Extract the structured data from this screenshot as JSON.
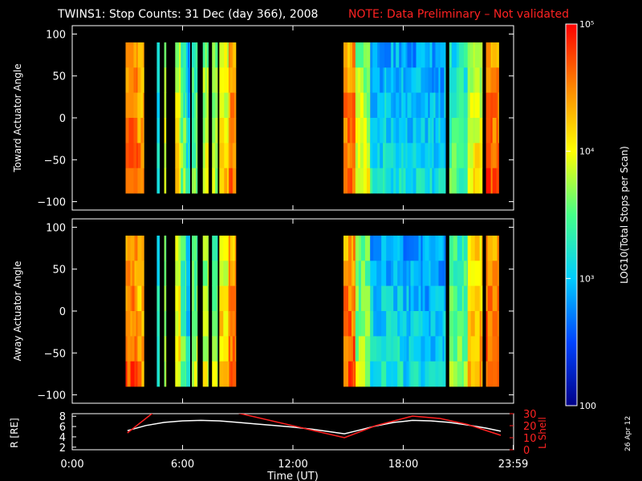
{
  "title": {
    "main": "TWINS1: Stop Counts: 31 Dec (day 366), 2008",
    "note": "NOTE: Data Preliminary – Not validated"
  },
  "stamp": "26 Apr 12",
  "colorbar": {
    "label": "LOG10(Total Stops per Scan)",
    "ticks": [
      "10⁵",
      "10⁴",
      "10³",
      "100"
    ],
    "tick_values": [
      100000,
      10000,
      1000,
      100
    ],
    "colors": [
      "#ff0000",
      "#ff8800",
      "#ffff00",
      "#44ff88",
      "#00ccff",
      "#0044ff",
      "#000088"
    ]
  },
  "chart_data": [
    {
      "type": "heatmap",
      "ylabel": "Toward Actuator Angle",
      "ylim": [
        -110,
        110
      ],
      "yticks": [
        "100",
        "50",
        "0",
        "−50",
        "−100"
      ],
      "ytick_values": [
        100,
        50,
        0,
        -50,
        -100
      ],
      "xlim_hours": [
        0,
        24
      ],
      "segments": [
        {
          "t0": 2.9,
          "t1": 3.55,
          "level": 0.82
        },
        {
          "t0": 3.55,
          "t1": 3.9,
          "level": 0.74
        },
        {
          "t0": 4.6,
          "t1": 4.75,
          "level": 0.35
        },
        {
          "t0": 5.0,
          "t1": 5.1,
          "level": 0.55
        },
        {
          "t0": 5.6,
          "t1": 5.9,
          "level": 0.6
        },
        {
          "t0": 5.9,
          "t1": 6.2,
          "level": 0.45
        },
        {
          "t0": 6.2,
          "t1": 6.4,
          "level": 0.3
        },
        {
          "t0": 6.5,
          "t1": 6.8,
          "level": 0.45
        },
        {
          "t0": 7.1,
          "t1": 7.4,
          "level": 0.55
        },
        {
          "t0": 7.6,
          "t1": 7.9,
          "level": 0.5
        },
        {
          "t0": 8.0,
          "t1": 8.5,
          "level": 0.62
        },
        {
          "t0": 8.5,
          "t1": 8.9,
          "level": 0.78
        },
        {
          "t0": 14.75,
          "t1": 15.4,
          "level": 0.8
        },
        {
          "t0": 15.4,
          "t1": 16.2,
          "level": 0.55
        },
        {
          "t0": 16.2,
          "t1": 18.0,
          "level": 0.3
        },
        {
          "t0": 18.0,
          "t1": 20.3,
          "level": 0.28
        },
        {
          "t0": 20.5,
          "t1": 21.5,
          "level": 0.4
        },
        {
          "t0": 21.5,
          "t1": 22.3,
          "level": 0.6
        },
        {
          "t0": 22.5,
          "t1": 23.2,
          "level": 0.8
        }
      ]
    },
    {
      "type": "heatmap",
      "ylabel": "Away Actuator Angle",
      "ylim": [
        -110,
        110
      ],
      "yticks": [
        "100",
        "50",
        "0",
        "−50",
        "−100"
      ],
      "ytick_values": [
        100,
        50,
        0,
        -50,
        -100
      ],
      "xlim_hours": [
        0,
        24
      ],
      "segments": [
        {
          "t0": 2.9,
          "t1": 3.55,
          "level": 0.8
        },
        {
          "t0": 3.55,
          "t1": 3.9,
          "level": 0.72
        },
        {
          "t0": 4.6,
          "t1": 4.75,
          "level": 0.35
        },
        {
          "t0": 5.0,
          "t1": 5.1,
          "level": 0.5
        },
        {
          "t0": 5.6,
          "t1": 5.9,
          "level": 0.6
        },
        {
          "t0": 5.9,
          "t1": 6.2,
          "level": 0.45
        },
        {
          "t0": 6.2,
          "t1": 6.4,
          "level": 0.3
        },
        {
          "t0": 6.5,
          "t1": 6.8,
          "level": 0.5
        },
        {
          "t0": 7.1,
          "t1": 7.4,
          "level": 0.55
        },
        {
          "t0": 7.6,
          "t1": 7.9,
          "level": 0.5
        },
        {
          "t0": 8.0,
          "t1": 8.5,
          "level": 0.65
        },
        {
          "t0": 8.5,
          "t1": 8.9,
          "level": 0.78
        },
        {
          "t0": 14.75,
          "t1": 15.4,
          "level": 0.8
        },
        {
          "t0": 15.4,
          "t1": 16.2,
          "level": 0.5
        },
        {
          "t0": 16.2,
          "t1": 18.0,
          "level": 0.3
        },
        {
          "t0": 18.0,
          "t1": 20.3,
          "level": 0.27
        },
        {
          "t0": 20.5,
          "t1": 21.5,
          "level": 0.45
        },
        {
          "t0": 21.5,
          "t1": 22.3,
          "level": 0.7
        },
        {
          "t0": 22.5,
          "t1": 23.2,
          "level": 0.82
        }
      ]
    },
    {
      "type": "line",
      "ylabel_left": "R [RE]",
      "ylabel_right": "L Shell",
      "ylim_left": [
        1.5,
        8.5
      ],
      "ylim_right": [
        0,
        30
      ],
      "yticks_left": [
        "8",
        "6",
        "4",
        "2"
      ],
      "ytick_values_left": [
        8,
        6,
        4,
        2
      ],
      "yticks_right": [
        "30",
        "20",
        "10",
        "0"
      ],
      "ytick_values_right": [
        30,
        20,
        10,
        0
      ],
      "xticks": [
        "0:00",
        "6:00",
        "12:00",
        "18:00",
        "23:59"
      ],
      "xtick_values": [
        0,
        6,
        12,
        18,
        23.98
      ],
      "xlabel": "Time (UT)",
      "series": [
        {
          "color": "#ffffff",
          "axis": "left",
          "x": [
            3.0,
            4.0,
            5.0,
            6.0,
            7.0,
            8.0,
            9.0,
            10.0,
            11.0,
            12.0,
            13.0,
            14.0,
            14.8,
            15.5,
            16.5,
            17.5,
            18.5,
            19.5,
            20.5,
            21.5,
            22.5,
            23.3
          ],
          "y": [
            5.2,
            6.2,
            6.8,
            7.1,
            7.2,
            7.1,
            6.8,
            6.5,
            6.2,
            5.9,
            5.5,
            5.0,
            4.6,
            5.2,
            6.1,
            6.8,
            7.2,
            7.1,
            6.8,
            6.3,
            5.7,
            5.1
          ]
        },
        {
          "color": "#ff2020",
          "axis": "right",
          "x": [
            3.0,
            4.5,
            8.6,
            14.8,
            16.5,
            18.5,
            20.0,
            21.5,
            23.3
          ],
          "y": [
            14,
            32,
            32,
            10,
            20,
            28,
            26,
            21,
            12
          ]
        }
      ]
    }
  ]
}
